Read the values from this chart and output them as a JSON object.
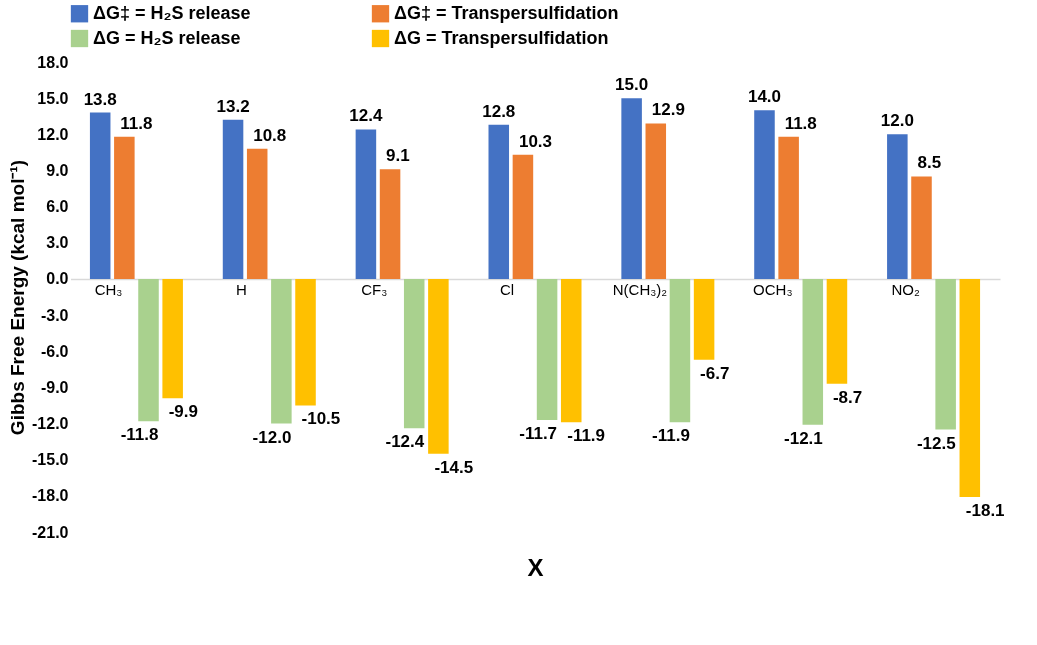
{
  "chart_data": {
    "type": "bar",
    "xlabel": "X",
    "ylabel": "Gibbs Free Energy (kcal mol⁻¹)",
    "categories": [
      "CH₃",
      "H",
      "CF₃",
      "Cl",
      "N(CH₃)₂",
      "OCH₃",
      "NO₂"
    ],
    "series": [
      {
        "name": "ΔG‡ = H₂S release",
        "color": "#4472c4",
        "values": [
          13.8,
          13.2,
          12.4,
          12.8,
          15.0,
          14.0,
          12.0
        ],
        "value_labels": [
          "13.8",
          "13.2",
          "12.4",
          "12.8",
          "15.0",
          "14.0",
          "12.0"
        ]
      },
      {
        "name": "ΔG‡ = Transpersulfidation",
        "color": "#ed7d31",
        "values": [
          11.8,
          10.8,
          9.1,
          10.3,
          12.9,
          11.8,
          8.5
        ],
        "value_labels": [
          "11.8",
          "10.8",
          "9.1",
          "10.3",
          "12.9",
          "11.8",
          "8.5"
        ]
      },
      {
        "name": "ΔG = H₂S release",
        "color": "#a9d18e",
        "values": [
          -11.8,
          -12.0,
          -12.4,
          -11.7,
          -11.9,
          -12.1,
          -12.5
        ],
        "value_labels": [
          "-11.8",
          "-12.0",
          "-12.4",
          "-11.7",
          "-11.9",
          "-12.1",
          "-12.5"
        ]
      },
      {
        "name": "ΔG = Transpersulfidation",
        "color": "#ffc000",
        "values": [
          -9.9,
          -10.5,
          -14.5,
          -11.9,
          -6.7,
          -8.7,
          -18.1
        ],
        "value_labels": [
          "-9.9",
          "-10.5",
          "-14.5",
          "-11.9",
          "-6.7",
          "-8.7",
          "-18.1"
        ]
      }
    ],
    "ylim": [
      -21,
      18
    ],
    "yticks": [
      {
        "value": -21,
        "label": "-21.0"
      },
      {
        "value": -18,
        "label": "-18.0"
      },
      {
        "value": -15,
        "label": "-15.0"
      },
      {
        "value": -12,
        "label": "-12.0"
      },
      {
        "value": -9,
        "label": "-9.0"
      },
      {
        "value": -6,
        "label": "-6.0"
      },
      {
        "value": -3,
        "label": "-3.0"
      },
      {
        "value": 0,
        "label": "0.0"
      },
      {
        "value": 3,
        "label": "3.0"
      },
      {
        "value": 6,
        "label": "6.0"
      },
      {
        "value": 9,
        "label": "9.0"
      },
      {
        "value": 12,
        "label": "12.0"
      },
      {
        "value": 15,
        "label": "15.0"
      },
      {
        "value": 18,
        "label": "18.0"
      }
    ],
    "grid": false,
    "legend": "top"
  }
}
